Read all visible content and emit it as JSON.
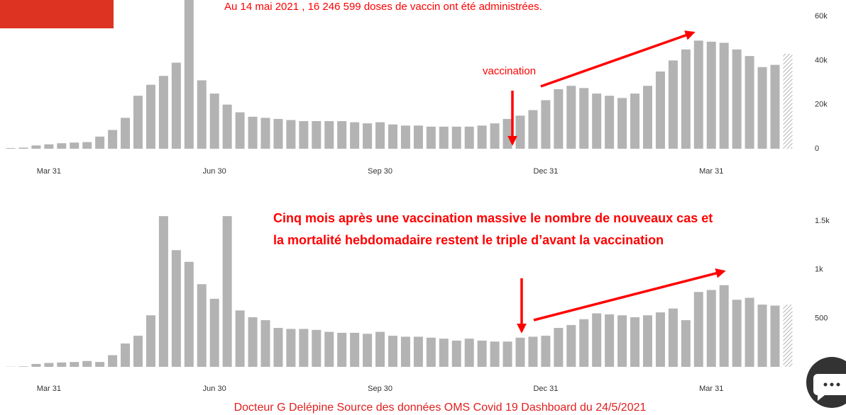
{
  "chart_data": [
    {
      "type": "bar",
      "color": "#b3b3b3",
      "hatch_last": true,
      "annotations": [
        "Au 14 mai 2021 , 16 246 599  doses de vaccin ont été administrées.",
        "vaccination"
      ],
      "categories": [
        null,
        null,
        null,
        "Mar 31",
        null,
        null,
        null,
        null,
        null,
        null,
        null,
        null,
        null,
        null,
        null,
        null,
        "Jun 30",
        null,
        null,
        null,
        null,
        null,
        null,
        null,
        null,
        null,
        null,
        null,
        null,
        "Sep 30",
        null,
        null,
        null,
        null,
        null,
        null,
        null,
        null,
        null,
        null,
        null,
        null,
        "Dec 31",
        null,
        null,
        null,
        null,
        null,
        null,
        null,
        null,
        null,
        null,
        null,
        null,
        "Mar 31",
        null,
        null,
        null,
        null,
        null,
        null
      ],
      "values": [
        300,
        500,
        1500,
        2000,
        2500,
        2800,
        3000,
        5500,
        8500,
        14000,
        24000,
        29000,
        33000,
        39000,
        68000,
        31000,
        25000,
        20000,
        16500,
        14500,
        14000,
        13500,
        13000,
        12500,
        12500,
        12500,
        12500,
        12000,
        11500,
        12000,
        11000,
        10500,
        10500,
        10000,
        10000,
        10000,
        10000,
        10500,
        11500,
        13500,
        15000,
        17500,
        22000,
        27000,
        28500,
        27500,
        25000,
        24000,
        23000,
        25000,
        28500,
        35000,
        40000,
        45000,
        49000,
        48500,
        48000,
        45000,
        42000,
        37000,
        38000,
        43000
      ],
      "ylim": [
        0,
        67400
      ],
      "yticks": [
        0,
        {
          "value": 20000,
          "label": "20k"
        },
        {
          "value": 40000,
          "label": "40k"
        },
        {
          "value": 60000,
          "label": "60k"
        }
      ]
    },
    {
      "type": "bar",
      "color": "#b3b3b3",
      "hatch_last": true,
      "annotations": [
        "Cinq mois après une vaccination massive le nombre de nouveaux cas et",
        "la mortalité hebdomadaire restent le triple d’avant la vaccination"
      ],
      "categories": [
        null,
        null,
        null,
        "Mar 31",
        null,
        null,
        null,
        null,
        null,
        null,
        null,
        null,
        null,
        null,
        null,
        null,
        "Jun 30",
        null,
        null,
        null,
        null,
        null,
        null,
        null,
        null,
        null,
        null,
        null,
        null,
        "Sep 30",
        null,
        null,
        null,
        null,
        null,
        null,
        null,
        null,
        null,
        null,
        null,
        null,
        "Dec 31",
        null,
        null,
        null,
        null,
        null,
        null,
        null,
        null,
        null,
        null,
        null,
        null,
        "Mar 31",
        null,
        null,
        null,
        null,
        null,
        null
      ],
      "values": [
        2,
        5,
        30,
        40,
        45,
        50,
        60,
        50,
        120,
        240,
        320,
        530,
        1550,
        1200,
        1080,
        850,
        700,
        1550,
        580,
        510,
        480,
        400,
        390,
        390,
        380,
        360,
        350,
        350,
        340,
        360,
        320,
        310,
        310,
        300,
        290,
        270,
        290,
        270,
        260,
        260,
        300,
        310,
        320,
        400,
        430,
        490,
        550,
        540,
        530,
        510,
        530,
        560,
        600,
        480,
        770,
        790,
        840,
        690,
        710,
        640,
        630,
        640
      ],
      "ylim": [
        0,
        1600
      ],
      "yticks": [
        0,
        500,
        {
          "value": 1000,
          "label": "1k"
        },
        {
          "value": 1500,
          "label": "1.5k"
        }
      ]
    }
  ],
  "footer": "Docteur G Delépine  Source des données OMS Covid 19 Dashboard du 24/5/2021"
}
